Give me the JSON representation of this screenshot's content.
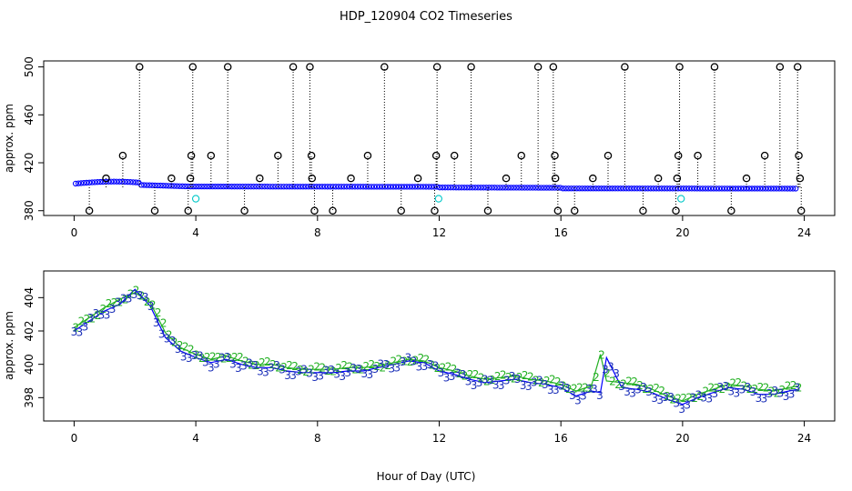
{
  "title": "HDP_120904  CO2 Timeseries",
  "xlabel": "Hour of Day (UTC)",
  "colors": {
    "line": "#0000ff",
    "raw_outlier": "#000000",
    "cyan_points": "#00c8c8",
    "label3": "#1a2eb8",
    "label2": "#22b022"
  },
  "chart_data": [
    {
      "type": "scatter",
      "panel": "top",
      "ylabel": "approx. ppm",
      "xlim": [
        -1,
        25
      ],
      "ylim": [
        376,
        505
      ],
      "xticks": [
        0,
        4,
        8,
        12,
        16,
        20,
        24
      ],
      "yticks": [
        380,
        420,
        460,
        500
      ],
      "ytick_labels": [
        "380",
        "420",
        "460",
        "500"
      ],
      "series": [
        {
          "marker": "circle-black",
          "x": [
            0.5,
            1.05,
            1.6,
            2.15,
            2.65,
            3.2,
            3.75,
            3.82,
            3.85,
            3.9,
            4.5,
            5.05,
            5.6,
            6.1,
            6.7,
            7.2,
            7.75,
            7.8,
            7.82,
            7.9,
            8.5,
            9.1,
            9.65,
            10.2,
            10.75,
            11.3,
            11.85,
            11.9,
            11.93,
            12.5,
            13.05,
            13.6,
            14.2,
            14.7,
            15.25,
            15.75,
            15.8,
            15.82,
            15.9,
            16.45,
            17.05,
            17.55,
            18.1,
            18.7,
            19.2,
            19.78,
            19.82,
            19.86,
            19.9,
            20.5,
            21.05,
            21.6,
            22.1,
            22.7,
            23.2,
            23.78,
            23.82,
            23.86,
            23.9
          ],
          "y": [
            380,
            407,
            426,
            500,
            380,
            407,
            380,
            407,
            426,
            500,
            426,
            500,
            380,
            407,
            426,
            500,
            500,
            426,
            407,
            380,
            380,
            407,
            426,
            500,
            380,
            407,
            380,
            426,
            500,
            426,
            500,
            380,
            407,
            426,
            500,
            500,
            426,
            407,
            380,
            380,
            407,
            426,
            500,
            380,
            407,
            380,
            407,
            426,
            500,
            426,
            500,
            380,
            407,
            426,
            500,
            500,
            426,
            407,
            380
          ]
        },
        {
          "marker": "circle-cyan",
          "x": [
            4.0,
            11.98,
            19.95
          ],
          "y": [
            390,
            390,
            390
          ]
        }
      ]
    },
    {
      "type": "line",
      "panel": "bottom",
      "ylabel": "approx. ppm",
      "xlim": [
        -1,
        25
      ],
      "ylim": [
        396.6,
        405.6
      ],
      "xticks": [
        0,
        4,
        8,
        12,
        16,
        20,
        24
      ],
      "yticks": [
        398,
        400,
        402,
        404
      ],
      "ytick_labels": [
        "398",
        "400",
        "402",
        "404"
      ],
      "series": [
        {
          "name": "3",
          "x": [
            0,
            0.5,
            1,
            1.5,
            2,
            2.5,
            3,
            3.5,
            4,
            4.5,
            5,
            5.5,
            6,
            6.5,
            7,
            7.5,
            8,
            8.5,
            9,
            9.5,
            10,
            10.5,
            11,
            11.5,
            12,
            12.5,
            13,
            13.5,
            14,
            14.5,
            15,
            15.5,
            16,
            16.5,
            17,
            17.3,
            17.5,
            18,
            18.5,
            19,
            19.5,
            20,
            20.5,
            21,
            21.5,
            22,
            22.5,
            23,
            23.5,
            23.8
          ],
          "y": [
            402.0,
            402.6,
            403.2,
            403.6,
            404.5,
            403.5,
            401.6,
            400.8,
            400.4,
            400.1,
            400.3,
            400.0,
            399.8,
            399.8,
            399.6,
            399.5,
            399.5,
            399.5,
            399.6,
            399.6,
            399.8,
            400.0,
            400.2,
            400.1,
            399.6,
            399.4,
            399.1,
            398.9,
            399.0,
            399.1,
            398.9,
            398.8,
            398.6,
            398.1,
            398.4,
            398.3,
            400.4,
            398.6,
            398.5,
            398.3,
            397.9,
            397.6,
            398.0,
            398.3,
            398.6,
            398.5,
            398.2,
            398.2,
            398.4,
            398.5
          ]
        },
        {
          "name": "2",
          "x": [
            0,
            0.5,
            1,
            1.5,
            2,
            2.5,
            3,
            3.5,
            4,
            4.5,
            5,
            5.5,
            6,
            6.5,
            7,
            7.5,
            8,
            8.5,
            9,
            9.5,
            10,
            10.5,
            11,
            11.5,
            12,
            12.5,
            13,
            13.5,
            14,
            14.5,
            15,
            15.5,
            16,
            16.5,
            17,
            17.3,
            17.5,
            18,
            18.5,
            19,
            19.5,
            20,
            20.5,
            21,
            21.5,
            22,
            22.5,
            23,
            23.5,
            23.8
          ],
          "y": [
            402.2,
            402.8,
            403.4,
            403.9,
            404.3,
            403.7,
            401.9,
            401.0,
            400.6,
            400.3,
            400.5,
            400.2,
            400.0,
            400.0,
            399.8,
            399.7,
            399.7,
            399.7,
            399.8,
            399.8,
            399.9,
            400.1,
            400.3,
            400.2,
            399.8,
            399.6,
            399.3,
            399.1,
            399.2,
            399.3,
            399.1,
            399.0,
            398.8,
            398.4,
            398.7,
            400.6,
            399.0,
            398.9,
            398.8,
            398.5,
            398.1,
            397.8,
            398.2,
            398.5,
            398.8,
            398.7,
            398.5,
            398.4,
            398.6,
            398.7
          ]
        }
      ]
    }
  ]
}
